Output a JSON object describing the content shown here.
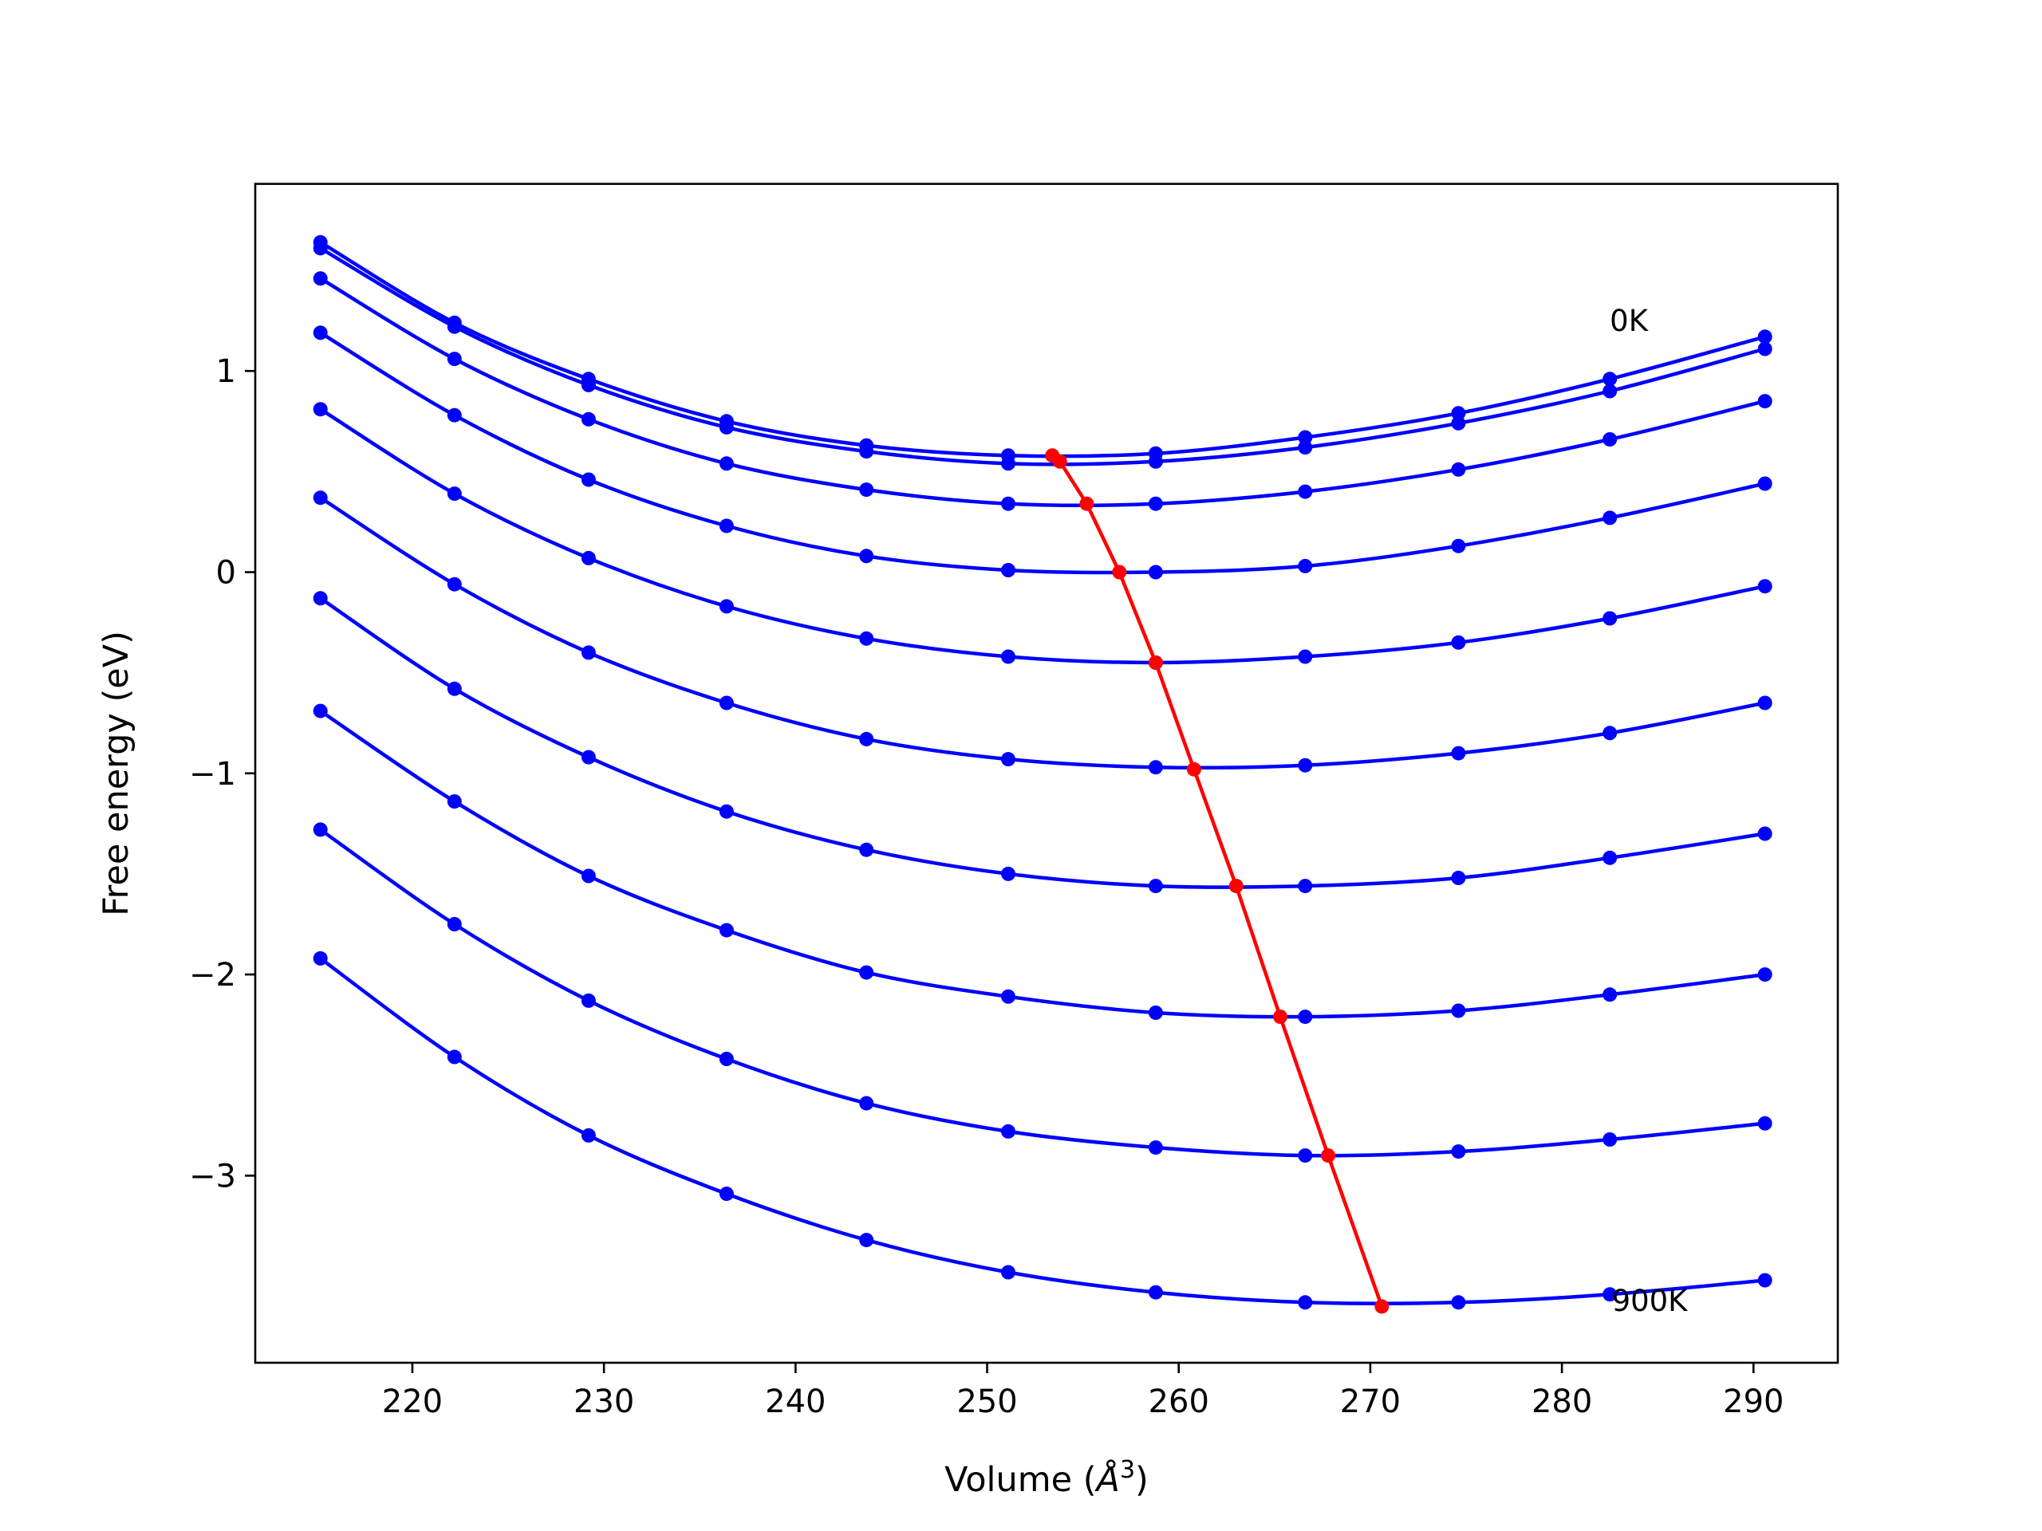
{
  "chart_data": {
    "type": "line",
    "xlabel": "Volume (Å³)",
    "xlabel_prefix": "Volume (",
    "xlabel_unit": "Å",
    "xlabel_sup": "3",
    "xlabel_suffix": ")",
    "ylabel": "Free energy (eV)",
    "xlim": [
      211.8,
      294.4
    ],
    "ylim": [
      -3.93,
      1.93
    ],
    "xticks": [
      220,
      230,
      240,
      250,
      260,
      270,
      280,
      290
    ],
    "xtick_labels": [
      "220",
      "230",
      "240",
      "250",
      "260",
      "270",
      "280",
      "290"
    ],
    "yticks": [
      1,
      0,
      -1,
      -2,
      -3
    ],
    "ytick_labels": [
      "1",
      "0",
      "−1",
      "−2",
      "−3"
    ],
    "grid": false,
    "annotations": [
      {
        "text": "0K",
        "x": 282.5,
        "y": 1.25
      },
      {
        "text": "900K",
        "x": 282.6,
        "y": -3.62
      }
    ],
    "volumes": [
      215.2,
      222.2,
      229.2,
      236.4,
      243.7,
      251.1,
      258.8,
      266.6,
      274.6,
      282.5,
      290.6
    ],
    "series": [
      {
        "values": [
          1.64,
          1.24,
          0.96,
          0.75,
          0.63,
          0.58,
          0.59,
          0.67,
          0.79,
          0.96,
          1.17
        ]
      },
      {
        "values": [
          1.61,
          1.22,
          0.93,
          0.72,
          0.6,
          0.54,
          0.55,
          0.62,
          0.74,
          0.9,
          1.11
        ]
      },
      {
        "values": [
          1.46,
          1.06,
          0.76,
          0.54,
          0.41,
          0.34,
          0.34,
          0.4,
          0.51,
          0.66,
          0.85
        ]
      },
      {
        "values": [
          1.19,
          0.78,
          0.46,
          0.23,
          0.08,
          0.01,
          0.0,
          0.03,
          0.13,
          0.27,
          0.44
        ]
      },
      {
        "values": [
          0.81,
          0.39,
          0.07,
          -0.17,
          -0.33,
          -0.42,
          -0.45,
          -0.42,
          -0.35,
          -0.23,
          -0.07
        ]
      },
      {
        "values": [
          0.37,
          -0.06,
          -0.4,
          -0.65,
          -0.83,
          -0.93,
          -0.97,
          -0.96,
          -0.9,
          -0.8,
          -0.65
        ]
      },
      {
        "values": [
          -0.13,
          -0.58,
          -0.92,
          -1.19,
          -1.38,
          -1.5,
          -1.56,
          -1.56,
          -1.52,
          -1.42,
          -1.3
        ]
      },
      {
        "values": [
          -0.69,
          -1.14,
          -1.51,
          -1.78,
          -1.99,
          -2.11,
          -2.19,
          -2.21,
          -2.18,
          -2.1,
          -2.0
        ]
      },
      {
        "values": [
          -1.28,
          -1.75,
          -2.13,
          -2.42,
          -2.64,
          -2.78,
          -2.86,
          -2.9,
          -2.88,
          -2.82,
          -2.74
        ]
      },
      {
        "values": [
          -1.92,
          -2.41,
          -2.8,
          -3.09,
          -3.32,
          -3.48,
          -3.58,
          -3.63,
          -3.63,
          -3.59,
          -3.52
        ]
      }
    ],
    "minima": {
      "color": "#ff0000",
      "x": [
        253.4,
        253.8,
        255.2,
        256.9,
        258.8,
        260.8,
        263.0,
        265.3,
        267.8,
        270.6
      ],
      "y": [
        0.58,
        0.55,
        0.34,
        0.0,
        -0.45,
        -0.98,
        -1.56,
        -2.21,
        -2.9,
        -3.65
      ]
    },
    "series_color": "#0000ff"
  }
}
